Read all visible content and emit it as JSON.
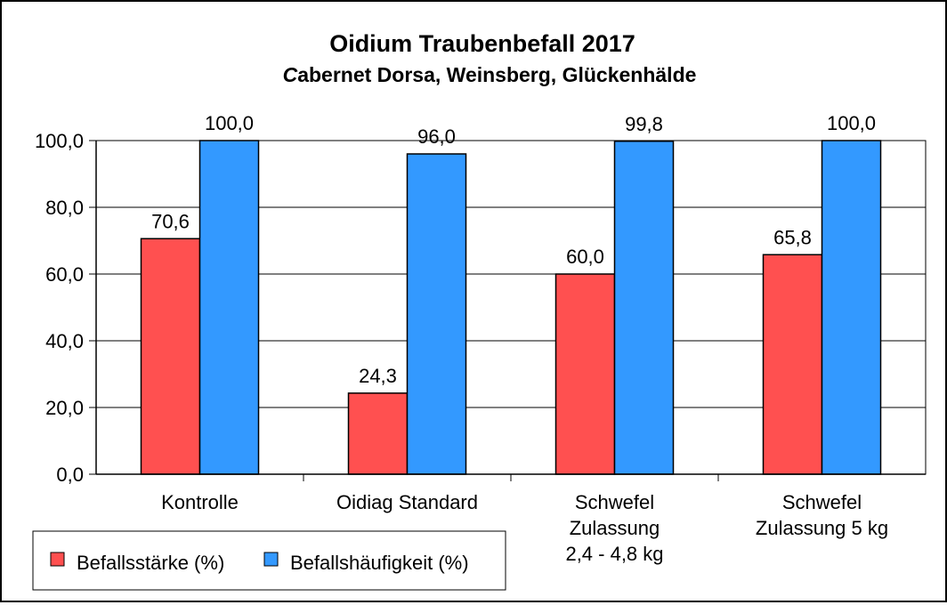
{
  "chart_data": {
    "type": "bar",
    "title": "Oidium Traubenbefall 2017",
    "subtitle_lead": "C",
    "subtitle_rest": "abernet Dorsa, Weinsberg, Glückenhälde",
    "categories": [
      [
        "Kontrolle"
      ],
      [
        "Oidiag Standard"
      ],
      [
        "Schwefel",
        "Zulassung",
        "2,4 - 4,8 kg"
      ],
      [
        "Schwefel",
        "Zulassung 5 kg"
      ]
    ],
    "series": [
      {
        "name": "Befallsstärke (%)",
        "color": "#FF5050",
        "values": [
          70.6,
          24.3,
          60.0,
          65.8
        ],
        "labels": [
          "70,6",
          "24,3",
          "60,0",
          "65,8"
        ]
      },
      {
        "name": "Befallshäufigkeit (%)",
        "color": "#3399FF",
        "values": [
          100.0,
          96.0,
          99.8,
          100.0
        ],
        "labels": [
          "100,0",
          "96,0",
          "99,8",
          "100,0"
        ]
      }
    ],
    "ylim": [
      0,
      100
    ],
    "yticks": [
      0,
      20,
      40,
      60,
      80,
      100
    ],
    "ytick_labels": [
      "0,0",
      "20,0",
      "40,0",
      "60,0",
      "80,0",
      "100,0"
    ],
    "grid": true,
    "legend_position": "bottom-left"
  }
}
